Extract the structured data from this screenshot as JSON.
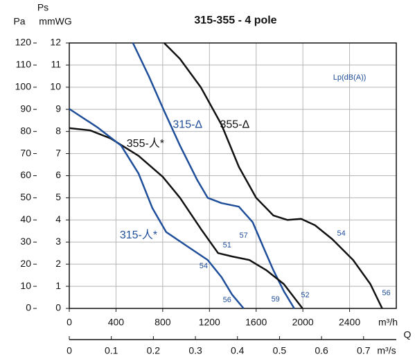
{
  "chart_data": {
    "type": "line",
    "title": "315-355 - 4 pole",
    "y_label": "Ps",
    "y_unit": "mmWG",
    "y2_unit": "Pa",
    "x_label": "Q",
    "x_unit": "m³/h",
    "x2_unit": "m³/s",
    "xlim": [
      0,
      2800
    ],
    "xticks": [
      0,
      400,
      800,
      1200,
      1600,
      2000,
      2400
    ],
    "x2lim": [
      0,
      0.7778
    ],
    "x2ticks": [
      0,
      0.1,
      0.2,
      0.3,
      0.4,
      0.5,
      0.6,
      0.7
    ],
    "ylim": [
      0,
      12
    ],
    "yticks": [
      0,
      1,
      2,
      3,
      4,
      5,
      6,
      7,
      8,
      9,
      10,
      11,
      12
    ],
    "y2lim": [
      0,
      120
    ],
    "y2ticks": [
      0,
      10,
      20,
      30,
      40,
      50,
      60,
      70,
      80,
      90,
      100,
      110,
      120
    ],
    "grid": true,
    "series": [
      {
        "name": "355-Δ",
        "color": "#111111",
        "x": [
          812,
          948,
          1126,
          1304,
          1452,
          1600,
          1748,
          1867,
          1985,
          2104,
          2252,
          2430,
          2578,
          2679
        ],
        "values": [
          12,
          11.28,
          10.0,
          8.3,
          6.4,
          5.0,
          4.2,
          4.0,
          4.05,
          3.76,
          3.13,
          2.19,
          1.1,
          0
        ]
      },
      {
        "name": "315-Δ",
        "color": "#1f4e9a",
        "x": [
          545,
          681,
          812,
          948,
          1096,
          1185,
          1304,
          1452,
          1570,
          1659,
          1748,
          1837,
          1926
        ],
        "values": [
          12,
          10.5,
          8.93,
          7.36,
          5.8,
          5.0,
          4.76,
          4.6,
          3.9,
          2.8,
          1.72,
          0.78,
          0
        ]
      },
      {
        "name": "355-人*",
        "color": "#111111",
        "x": [
          0,
          178,
          356,
          593,
          800,
          948,
          1126,
          1274,
          1393,
          1541,
          1689,
          1837,
          1997
        ],
        "values": [
          8.15,
          8.05,
          7.68,
          6.9,
          5.95,
          5.0,
          3.6,
          2.5,
          2.35,
          2.19,
          1.72,
          1.1,
          0
        ]
      },
      {
        "name": "315-人*",
        "color": "#1f4e9a",
        "x": [
          0,
          237,
          444,
          593,
          711,
          830,
          1007,
          1185,
          1304,
          1393,
          1493
        ],
        "values": [
          9.02,
          8.2,
          7.36,
          6.1,
          4.54,
          3.45,
          2.82,
          2.19,
          1.41,
          0.63,
          0
        ]
      }
    ],
    "annotations": [
      {
        "text": "315-Δ",
        "x": 1013,
        "y": 8.3,
        "color": "#1f4e9a"
      },
      {
        "text": "355-Δ",
        "x": 1417,
        "y": 8.3,
        "color": "#111111"
      },
      {
        "text": "355-人*",
        "x": 652,
        "y": 7.43,
        "color": "#111111"
      },
      {
        "text": "315-人*",
        "x": 593,
        "y": 3.29,
        "color": "#1f4e9a"
      },
      {
        "text": "Lp(dB(A))",
        "x": 2400,
        "y": 10.43,
        "color": "#1f4e9a"
      },
      {
        "text": "57",
        "x": 1493,
        "y": 3.29,
        "color": "#1f4e9a"
      },
      {
        "text": "51",
        "x": 1351,
        "y": 2.85,
        "color": "#1f4e9a"
      },
      {
        "text": "54",
        "x": 1150,
        "y": 1.91,
        "color": "#1f4e9a"
      },
      {
        "text": "56",
        "x": 1351,
        "y": 0.38,
        "color": "#1f4e9a"
      },
      {
        "text": "59",
        "x": 1766,
        "y": 0.41,
        "color": "#1f4e9a"
      },
      {
        "text": "52",
        "x": 2020,
        "y": 0.6,
        "color": "#1f4e9a"
      },
      {
        "text": "54",
        "x": 2329,
        "y": 3.38,
        "color": "#1f4e9a"
      },
      {
        "text": "56",
        "x": 2714,
        "y": 0.69,
        "color": "#1f4e9a"
      }
    ]
  }
}
